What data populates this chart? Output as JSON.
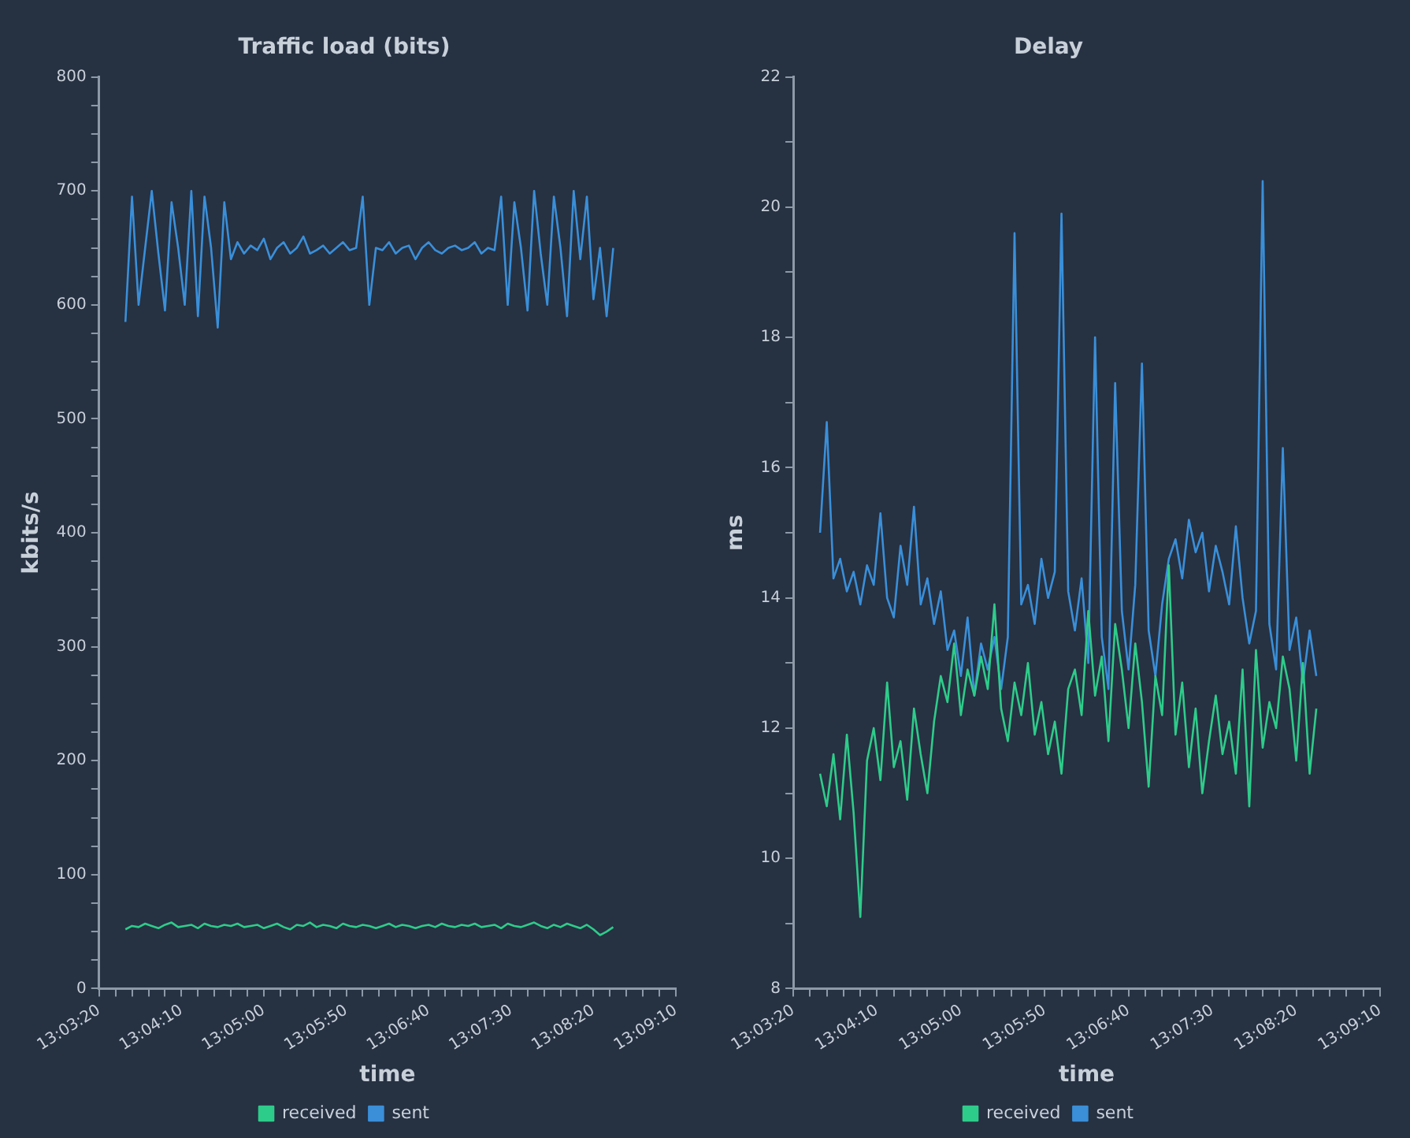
{
  "chart_data": [
    {
      "type": "line",
      "title": "Traffic load (bits)",
      "xlabel": "time",
      "ylabel": "kbits/s",
      "legend": "bottom",
      "grid": false,
      "marker": "none",
      "line_style": "solid",
      "x": [
        13.06,
        13.06111,
        13.06222,
        13.06333,
        13.06444,
        13.06556,
        13.06667,
        13.06778,
        13.06889,
        13.07,
        13.07111,
        13.07222,
        13.07333,
        13.07444,
        13.07556,
        13.07667,
        13.07778,
        13.07889,
        13.08,
        13.08111,
        13.08222,
        13.08333,
        13.08444,
        13.08556,
        13.08667,
        13.08778,
        13.08889,
        13.09,
        13.09111,
        13.09222,
        13.09333,
        13.09444,
        13.09556,
        13.09667,
        13.09778,
        13.09889,
        13.1,
        13.10111,
        13.10222,
        13.10333,
        13.10444,
        13.10556,
        13.10667,
        13.10778,
        13.10889,
        13.11,
        13.11111,
        13.11222,
        13.11333,
        13.11444,
        13.11556,
        13.11667,
        13.11778,
        13.11889,
        13.12,
        13.12111,
        13.12222,
        13.12333,
        13.12444,
        13.12556,
        13.12667,
        13.12778,
        13.12889,
        13.13,
        13.13111,
        13.13222,
        13.13333,
        13.13444,
        13.13556,
        13.13667,
        13.13778,
        13.13889,
        13.14,
        13.14111,
        13.14222
      ],
      "series": [
        {
          "name": "received",
          "color": "#2ecc8a",
          "values": [
            52,
            55,
            54,
            57,
            55,
            53,
            56,
            58,
            54,
            55,
            56,
            53,
            57,
            55,
            54,
            56,
            55,
            57,
            54,
            55,
            56,
            53,
            55,
            57,
            54,
            52,
            56,
            55,
            58,
            54,
            56,
            55,
            53,
            57,
            55,
            54,
            56,
            55,
            53,
            55,
            57,
            54,
            56,
            55,
            53,
            55,
            56,
            54,
            57,
            55,
            54,
            56,
            55,
            57,
            54,
            55,
            56,
            53,
            57,
            55,
            54,
            56,
            58,
            55,
            53,
            56,
            54,
            57,
            55,
            53,
            56,
            52,
            47,
            50,
            54
          ]
        },
        {
          "name": "sent",
          "color": "#3a8fd8",
          "values": [
            585,
            695,
            600,
            650,
            700,
            645,
            595,
            690,
            650,
            600,
            700,
            590,
            695,
            650,
            580,
            690,
            640,
            655,
            645,
            652,
            648,
            658,
            640,
            650,
            655,
            645,
            650,
            660,
            645,
            648,
            652,
            645,
            650,
            655,
            648,
            650,
            695,
            600,
            650,
            648,
            655,
            645,
            650,
            652,
            640,
            650,
            655,
            648,
            645,
            650,
            652,
            648,
            650,
            655,
            645,
            650,
            648,
            695,
            600,
            690,
            650,
            595,
            700,
            645,
            600,
            695,
            650,
            590,
            700,
            640,
            695,
            605,
            650,
            590,
            650
          ]
        }
      ],
      "xlim": [
        13.05556,
        13.15278
      ],
      "xticks": [
        {
          "value": 13.05556,
          "label": "13:03:20"
        },
        {
          "value": 13.05833,
          "label": null
        },
        {
          "value": 13.06111,
          "label": null
        },
        {
          "value": 13.06389,
          "label": null
        },
        {
          "value": 13.06667,
          "label": null
        },
        {
          "value": 13.06944,
          "label": "13:04:10"
        },
        {
          "value": 13.07222,
          "label": null
        },
        {
          "value": 13.075,
          "label": null
        },
        {
          "value": 13.07778,
          "label": null
        },
        {
          "value": 13.08056,
          "label": null
        },
        {
          "value": 13.08333,
          "label": "13:05:00"
        },
        {
          "value": 13.08611,
          "label": null
        },
        {
          "value": 13.08889,
          "label": null
        },
        {
          "value": 13.09167,
          "label": null
        },
        {
          "value": 13.09444,
          "label": null
        },
        {
          "value": 13.09722,
          "label": "13:05:50"
        },
        {
          "value": 13.1,
          "label": null
        },
        {
          "value": 13.10278,
          "label": null
        },
        {
          "value": 13.10556,
          "label": null
        },
        {
          "value": 13.10833,
          "label": null
        },
        {
          "value": 13.11111,
          "label": "13:06:40"
        },
        {
          "value": 13.11389,
          "label": null
        },
        {
          "value": 13.11667,
          "label": null
        },
        {
          "value": 13.11944,
          "label": null
        },
        {
          "value": 13.12222,
          "label": null
        },
        {
          "value": 13.125,
          "label": "13:07:30"
        },
        {
          "value": 13.12778,
          "label": null
        },
        {
          "value": 13.13056,
          "label": null
        },
        {
          "value": 13.13333,
          "label": null
        },
        {
          "value": 13.13611,
          "label": null
        },
        {
          "value": 13.13889,
          "label": "13:08:20"
        },
        {
          "value": 13.14167,
          "label": null
        },
        {
          "value": 13.14444,
          "label": null
        },
        {
          "value": 13.14722,
          "label": null
        },
        {
          "value": 13.15,
          "label": null
        },
        {
          "value": 13.15278,
          "label": "13:09:10"
        }
      ],
      "ylim": [
        0,
        800
      ],
      "yticks": [
        0,
        {
          "value": 25,
          "label": null
        },
        {
          "value": 50,
          "label": null
        },
        {
          "value": 75,
          "label": null
        },
        100,
        {
          "value": 125,
          "label": null
        },
        {
          "value": 150,
          "label": null
        },
        {
          "value": 175,
          "label": null
        },
        200,
        {
          "value": 225,
          "label": null
        },
        {
          "value": 250,
          "label": null
        },
        {
          "value": 275,
          "label": null
        },
        300,
        {
          "value": 325,
          "label": null
        },
        {
          "value": 350,
          "label": null
        },
        {
          "value": 375,
          "label": null
        },
        400,
        {
          "value": 425,
          "label": null
        },
        {
          "value": 450,
          "label": null
        },
        {
          "value": 475,
          "label": null
        },
        500,
        {
          "value": 525,
          "label": null
        },
        {
          "value": 550,
          "label": null
        },
        {
          "value": 575,
          "label": null
        },
        600,
        {
          "value": 625,
          "label": null
        },
        {
          "value": 650,
          "label": null
        },
        {
          "value": 675,
          "label": null
        },
        700,
        {
          "value": 725,
          "label": null
        },
        {
          "value": 750,
          "label": null
        },
        {
          "value": 775,
          "label": null
        },
        800
      ]
    },
    {
      "type": "line",
      "title": "Delay",
      "xlabel": "time",
      "ylabel": "ms",
      "legend": "bottom",
      "grid": false,
      "marker": "none",
      "line_style": "solid",
      "x": [
        13.06,
        13.06111,
        13.06222,
        13.06333,
        13.06444,
        13.06556,
        13.06667,
        13.06778,
        13.06889,
        13.07,
        13.07111,
        13.07222,
        13.07333,
        13.07444,
        13.07556,
        13.07667,
        13.07778,
        13.07889,
        13.08,
        13.08111,
        13.08222,
        13.08333,
        13.08444,
        13.08556,
        13.08667,
        13.08778,
        13.08889,
        13.09,
        13.09111,
        13.09222,
        13.09333,
        13.09444,
        13.09556,
        13.09667,
        13.09778,
        13.09889,
        13.1,
        13.10111,
        13.10222,
        13.10333,
        13.10444,
        13.10556,
        13.10667,
        13.10778,
        13.10889,
        13.11,
        13.11111,
        13.11222,
        13.11333,
        13.11444,
        13.11556,
        13.11667,
        13.11778,
        13.11889,
        13.12,
        13.12111,
        13.12222,
        13.12333,
        13.12444,
        13.12556,
        13.12667,
        13.12778,
        13.12889,
        13.13,
        13.13111,
        13.13222,
        13.13333,
        13.13444,
        13.13556,
        13.13667,
        13.13778,
        13.13889,
        13.14,
        13.14111,
        13.14222
      ],
      "series": [
        {
          "name": "received",
          "color": "#2ecc8a",
          "values": [
            11.3,
            10.8,
            11.6,
            10.6,
            11.9,
            10.7,
            9.1,
            11.5,
            12.0,
            11.2,
            12.7,
            11.4,
            11.8,
            10.9,
            12.3,
            11.6,
            11.0,
            12.1,
            12.8,
            12.4,
            13.3,
            12.2,
            12.9,
            12.5,
            13.1,
            12.6,
            13.9,
            12.3,
            11.8,
            12.7,
            12.2,
            13.0,
            11.9,
            12.4,
            11.6,
            12.1,
            11.3,
            12.6,
            12.9,
            12.2,
            13.8,
            12.5,
            13.1,
            11.8,
            13.6,
            12.9,
            12.0,
            13.3,
            12.4,
            11.1,
            12.8,
            12.2,
            14.5,
            11.9,
            12.7,
            11.4,
            12.3,
            11.0,
            11.8,
            12.5,
            11.6,
            12.1,
            11.3,
            12.9,
            10.8,
            13.2,
            11.7,
            12.4,
            12.0,
            13.1,
            12.6,
            11.5,
            13.0,
            11.3,
            12.3
          ]
        },
        {
          "name": "sent",
          "color": "#3a8fd8",
          "values": [
            15.0,
            16.7,
            14.3,
            14.6,
            14.1,
            14.4,
            13.9,
            14.5,
            14.2,
            15.3,
            14.0,
            13.7,
            14.8,
            14.2,
            15.4,
            13.9,
            14.3,
            13.6,
            14.1,
            13.2,
            13.5,
            12.8,
            13.7,
            12.5,
            13.3,
            12.9,
            13.4,
            12.6,
            13.4,
            19.6,
            13.9,
            14.2,
            13.6,
            14.6,
            14.0,
            14.4,
            19.9,
            14.1,
            13.5,
            14.3,
            13.0,
            18.0,
            13.4,
            12.6,
            17.3,
            13.8,
            12.9,
            14.2,
            17.6,
            13.5,
            12.8,
            13.9,
            14.6,
            14.9,
            14.3,
            15.2,
            14.7,
            15.0,
            14.1,
            14.8,
            14.4,
            13.9,
            15.1,
            14.0,
            13.3,
            13.8,
            20.4,
            13.6,
            12.9,
            16.3,
            13.2,
            13.7,
            12.7,
            13.5,
            12.8
          ]
        }
      ],
      "xlim": [
        13.05556,
        13.15278
      ],
      "xticks": [
        {
          "value": 13.05556,
          "label": "13:03:20"
        },
        {
          "value": 13.05833,
          "label": null
        },
        {
          "value": 13.06111,
          "label": null
        },
        {
          "value": 13.06389,
          "label": null
        },
        {
          "value": 13.06667,
          "label": null
        },
        {
          "value": 13.06944,
          "label": "13:04:10"
        },
        {
          "value": 13.07222,
          "label": null
        },
        {
          "value": 13.075,
          "label": null
        },
        {
          "value": 13.07778,
          "label": null
        },
        {
          "value": 13.08056,
          "label": null
        },
        {
          "value": 13.08333,
          "label": "13:05:00"
        },
        {
          "value": 13.08611,
          "label": null
        },
        {
          "value": 13.08889,
          "label": null
        },
        {
          "value": 13.09167,
          "label": null
        },
        {
          "value": 13.09444,
          "label": null
        },
        {
          "value": 13.09722,
          "label": "13:05:50"
        },
        {
          "value": 13.1,
          "label": null
        },
        {
          "value": 13.10278,
          "label": null
        },
        {
          "value": 13.10556,
          "label": null
        },
        {
          "value": 13.10833,
          "label": null
        },
        {
          "value": 13.11111,
          "label": "13:06:40"
        },
        {
          "value": 13.11389,
          "label": null
        },
        {
          "value": 13.11667,
          "label": null
        },
        {
          "value": 13.11944,
          "label": null
        },
        {
          "value": 13.12222,
          "label": null
        },
        {
          "value": 13.125,
          "label": "13:07:30"
        },
        {
          "value": 13.12778,
          "label": null
        },
        {
          "value": 13.13056,
          "label": null
        },
        {
          "value": 13.13333,
          "label": null
        },
        {
          "value": 13.13611,
          "label": null
        },
        {
          "value": 13.13889,
          "label": "13:08:20"
        },
        {
          "value": 13.14167,
          "label": null
        },
        {
          "value": 13.14444,
          "label": null
        },
        {
          "value": 13.14722,
          "label": null
        },
        {
          "value": 13.15,
          "label": null
        },
        {
          "value": 13.15278,
          "label": "13:09:10"
        }
      ],
      "ylim": [
        8,
        22
      ],
      "yticks": [
        8,
        {
          "value": 9,
          "label": null
        },
        10,
        {
          "value": 11,
          "label": null
        },
        12,
        {
          "value": 13,
          "label": null
        },
        14,
        {
          "value": 15,
          "label": null
        },
        16,
        {
          "value": 17,
          "label": null
        },
        18,
        {
          "value": 19,
          "label": null
        },
        20,
        {
          "value": 21,
          "label": null
        },
        22
      ]
    }
  ]
}
